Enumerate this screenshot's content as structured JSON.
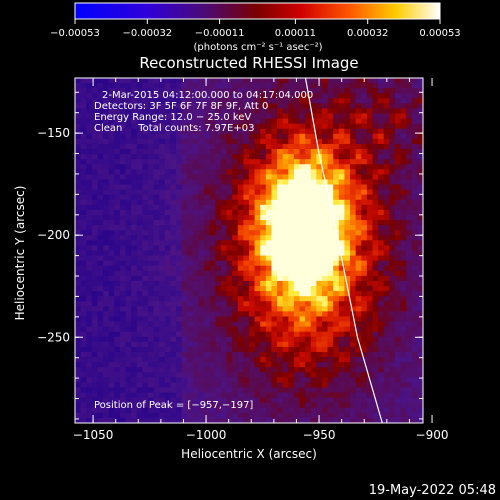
{
  "chart_data": {
    "type": "heatmap",
    "title": "Reconstructed RHESSI Image",
    "xlabel": "Heliocentric X (arcsec)",
    "ylabel": "Heliocentric Y (arcsec)",
    "xlim": [
      -1058,
      -904
    ],
    "ylim": [
      -292,
      -123
    ],
    "x_ticks": [
      -1050,
      -1000,
      -950,
      -900
    ],
    "y_ticks": [
      -150,
      -200,
      -250
    ],
    "x_tick_labels": [
      "−1050",
      "−1000",
      "−950",
      "−900"
    ],
    "y_tick_labels": [
      "−150",
      "−200",
      "−250"
    ],
    "colorbar": {
      "min": -0.00053,
      "max": 0.00053,
      "colormap": "blue-purple-red-yellow-white",
      "ticks": [
        -0.00053,
        -0.00032,
        -0.00011,
        0.00011,
        0.00032,
        0.00053
      ],
      "tick_labels": [
        "−0.00053",
        "−0.00032",
        "−0.00011",
        "0.00011",
        "0.00032",
        "0.00053"
      ],
      "units_label": "(photons cm⁻² s⁻¹ asec⁻²)"
    },
    "annotations": {
      "time_range": "2-Mar-2015 04:12:00.000 to 04:17:04.000",
      "detectors": "Detectors: 3F 5F 6F 7F 8F 9F, Att 0",
      "energy_range": "Energy Range: 12.0 − 25.0 keV",
      "clean_counts": "Clean     Total counts: 7.97E+03",
      "peak_position": "Position of Peak = [−957,−197]"
    },
    "peak": {
      "x": -957,
      "y": -197
    },
    "limb_curve": [
      [
        -956,
        -123
      ],
      [
        -950,
        -160
      ],
      [
        -942,
        -200
      ],
      [
        -933,
        -250
      ],
      [
        -922,
        -292
      ]
    ],
    "map_grid": {
      "nx": 62,
      "ny": 68
    }
  },
  "footer": {
    "timestamp": "19-May-2022 05:48"
  }
}
